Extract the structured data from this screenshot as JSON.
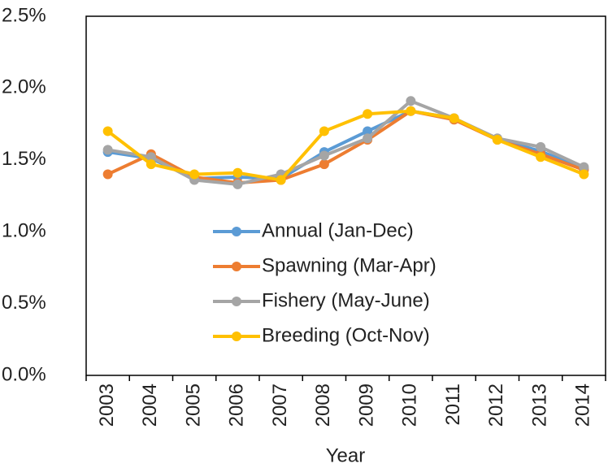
{
  "chart_data": {
    "type": "line",
    "x_label": "Year",
    "categories": [
      "2003",
      "2004",
      "2005",
      "2006",
      "2007",
      "2008",
      "2009",
      "2010",
      "2011",
      "2012",
      "2013",
      "2014"
    ],
    "series": [
      {
        "name": "Annual (Jan-Dec)",
        "color": "#5b9bd5",
        "values": [
          1.555,
          1.51,
          1.37,
          1.38,
          1.37,
          1.555,
          1.7,
          1.84,
          1.79,
          1.645,
          1.56,
          1.44
        ]
      },
      {
        "name": "Spawning (Mar-Apr)",
        "color": "#ed7d31",
        "values": [
          1.4,
          1.54,
          1.38,
          1.34,
          1.36,
          1.47,
          1.64,
          1.84,
          1.78,
          1.64,
          1.54,
          1.43
        ]
      },
      {
        "name": "Fishery (May-June)",
        "color": "#a5a5a5",
        "values": [
          1.57,
          1.52,
          1.36,
          1.33,
          1.4,
          1.53,
          1.65,
          1.91,
          1.79,
          1.65,
          1.59,
          1.45
        ]
      },
      {
        "name": "Breeding (Oct-Nov)",
        "color": "#ffc000",
        "values": [
          1.7,
          1.47,
          1.4,
          1.41,
          1.36,
          1.7,
          1.82,
          1.84,
          1.79,
          1.64,
          1.52,
          1.4
        ]
      }
    ],
    "ylim": [
      0,
      2.5
    ],
    "yticks": [
      {
        "value": 0,
        "label": "0.0%"
      },
      {
        "value": 0.5,
        "label": "0.5%"
      },
      {
        "value": 1,
        "label": "1.0%"
      },
      {
        "value": 1.5,
        "label": "1.5%"
      },
      {
        "value": 2,
        "label": "2.0%"
      },
      {
        "value": 2.5,
        "label": "2.5%"
      }
    ],
    "grid": false,
    "legend_position": "center"
  }
}
